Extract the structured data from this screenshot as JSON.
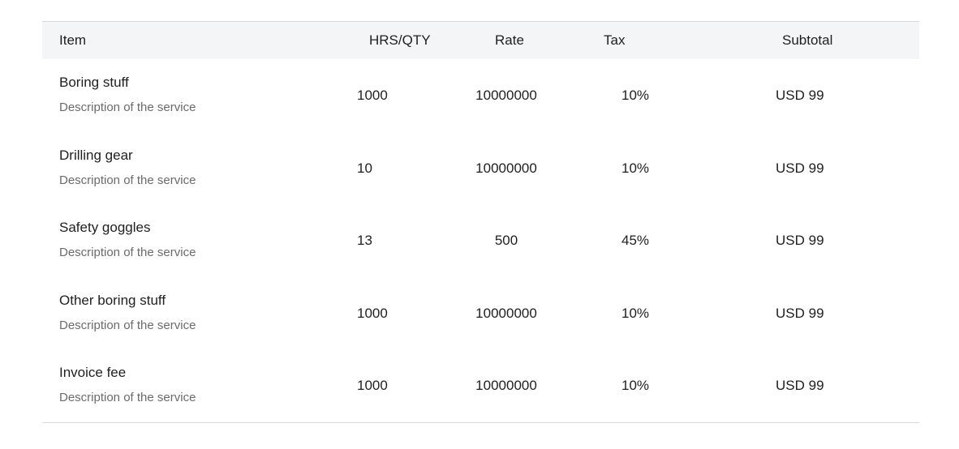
{
  "table": {
    "headers": {
      "item": "Item",
      "qty": "HRS/QTY",
      "rate": "Rate",
      "tax": "Tax",
      "subtotal": "Subtotal"
    },
    "rows": [
      {
        "name": "Boring stuff",
        "description": "Description of the service",
        "qty": "1000",
        "rate": "10000000",
        "tax": "10%",
        "subtotal": "USD 99"
      },
      {
        "name": "Drilling gear",
        "description": "Description of the service",
        "qty": "10",
        "rate": "10000000",
        "tax": "10%",
        "subtotal": "USD 99"
      },
      {
        "name": "Safety goggles",
        "description": "Description of the service",
        "qty": "13",
        "rate": "500",
        "tax": "45%",
        "subtotal": "USD 99"
      },
      {
        "name": "Other boring stuff",
        "description": "Description of the service",
        "qty": "1000",
        "rate": "10000000",
        "tax": "10%",
        "subtotal": "USD 99"
      },
      {
        "name": "Invoice fee",
        "description": "Description of the service",
        "qty": "1000",
        "rate": "10000000",
        "tax": "10%",
        "subtotal": "USD 99"
      }
    ]
  }
}
